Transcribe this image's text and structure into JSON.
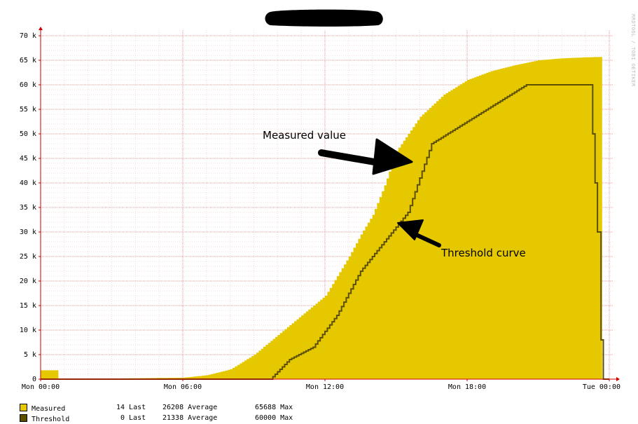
{
  "chart_data": {
    "type": "area",
    "watermark": "RRDTOOL / TOBI OETIKER",
    "ylim": [
      0,
      70000
    ],
    "y_ticks": [
      0,
      5000,
      10000,
      15000,
      20000,
      25000,
      30000,
      35000,
      40000,
      45000,
      50000,
      55000,
      60000,
      65000,
      70000
    ],
    "y_tick_labels": [
      "0",
      "5 k",
      "10 k",
      "15 k",
      "20 k",
      "25 k",
      "30 k",
      "35 k",
      "40 k",
      "45 k",
      "50 k",
      "55 k",
      "60 k",
      "65 k",
      "70 k"
    ],
    "xlim_hours": [
      0,
      24
    ],
    "x_ticks": [
      0,
      6,
      12,
      18,
      24
    ],
    "x_tick_labels": [
      "Mon 00:00",
      "Mon 06:00",
      "Mon 12:00",
      "Mon 18:00",
      "Tue 00:00"
    ],
    "series": [
      {
        "name": "Measured",
        "color": "#e6c800",
        "style": "area",
        "x": [
          0,
          0.75,
          0.75,
          6,
          7,
          8,
          9,
          10,
          11,
          12,
          13,
          13.5,
          14,
          14.5,
          15,
          15.5,
          16,
          17,
          18,
          19,
          20,
          21,
          22,
          23,
          23.7,
          23.7
        ],
        "values": [
          1800,
          1800,
          0,
          300,
          800,
          2000,
          5000,
          9000,
          13000,
          17000,
          25000,
          29500,
          33500,
          39500,
          46500,
          50000,
          53500,
          58000,
          61000,
          62800,
          64000,
          65000,
          65400,
          65600,
          65688,
          0
        ]
      },
      {
        "name": "Threshold",
        "color": "#5c4f00",
        "style": "line",
        "x": [
          0,
          6,
          8,
          9.7,
          10.5,
          11.5,
          12.5,
          13.5,
          14.5,
          15.5,
          16.5,
          17.5,
          19,
          20.5,
          21.5,
          23.2,
          23.5,
          23.65,
          23.75,
          24
        ],
        "values": [
          0,
          0,
          0,
          0,
          4000,
          6500,
          13000,
          22000,
          28000,
          34000,
          48000,
          51000,
          55500,
          60000,
          60000,
          60000,
          30000,
          8000,
          0,
          0
        ]
      }
    ],
    "legend_placement": "bottom-left",
    "legend": [
      {
        "name": "Measured",
        "last": "14 Last",
        "average": "26208 Average",
        "max": "65688 Max",
        "color": "#e6c800"
      },
      {
        "name": "Threshold",
        "last": "0 Last",
        "average": "21338 Average",
        "max": "60000 Max",
        "color": "#5c4f00"
      }
    ],
    "annotations": [
      {
        "text": "Measured value",
        "x_hours": 15.9,
        "y": 48000
      },
      {
        "text": "Threshold curve",
        "x_hours": 15.1,
        "y": 32500
      }
    ],
    "grid": true
  }
}
